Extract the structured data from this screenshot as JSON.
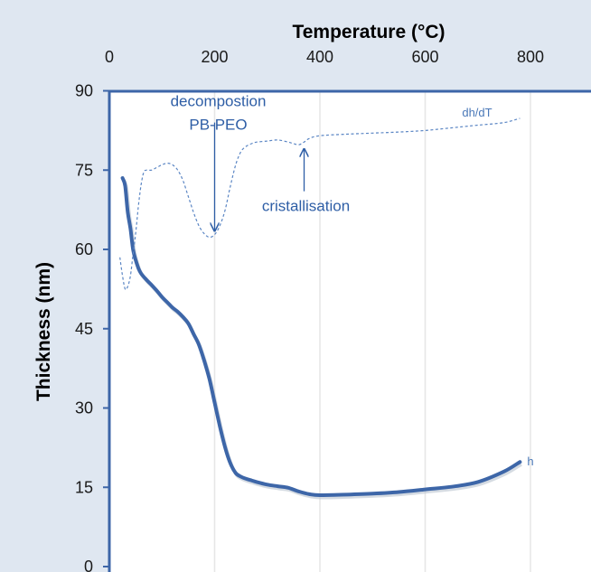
{
  "chart_data": {
    "type": "line",
    "xlabel": "Temperature (°C)",
    "ylabel": "Thickness (nm)",
    "xlim": [
      0,
      900
    ],
    "ylim": [
      0,
      90
    ],
    "xticks": [
      0,
      200,
      400,
      600,
      800
    ],
    "yticks": [
      0,
      15,
      30,
      45,
      60,
      75,
      90
    ],
    "x_axis_position": "top",
    "grid": "vertical",
    "series": [
      {
        "name": "h",
        "style": "solid-thick",
        "color": "#3d66a8",
        "x": [
          25,
          30,
          35,
          40,
          45,
          50,
          55,
          60,
          70,
          80,
          90,
          100,
          110,
          120,
          130,
          140,
          150,
          160,
          170,
          180,
          190,
          200,
          210,
          220,
          230,
          240,
          250,
          260,
          270,
          280,
          300,
          320,
          340,
          360,
          380,
          400,
          450,
          500,
          550,
          600,
          650,
          700,
          750,
          780
        ],
        "y": [
          73.5,
          72,
          67,
          64,
          60,
          58,
          56.5,
          55.5,
          54.3,
          53.3,
          52.2,
          51,
          50,
          49,
          48.2,
          47.2,
          46,
          44,
          42,
          39,
          35.5,
          31,
          26.5,
          22.5,
          19.5,
          17.7,
          17.0,
          16.6,
          16.3,
          16.0,
          15.5,
          15.2,
          14.9,
          14.2,
          13.7,
          13.5,
          13.6,
          13.8,
          14.1,
          14.6,
          15.1,
          16.0,
          18.0,
          19.8
        ]
      },
      {
        "name": "dh/dT",
        "style": "dashed",
        "color": "#5b86c4",
        "x": [
          20,
          25,
          30,
          35,
          40,
          45,
          50,
          55,
          60,
          65,
          70,
          80,
          90,
          100,
          110,
          120,
          130,
          140,
          150,
          160,
          170,
          180,
          190,
          200,
          210,
          220,
          230,
          240,
          250,
          260,
          270,
          280,
          300,
          320,
          340,
          350,
          360,
          370,
          380,
          400,
          450,
          500,
          550,
          600,
          650,
          700,
          750,
          780
        ],
        "y": [
          58.5,
          55,
          52.5,
          53,
          55,
          59,
          63,
          68,
          72,
          74.5,
          75,
          75,
          75.5,
          76,
          76.3,
          76,
          75,
          73,
          70,
          67,
          64.5,
          63,
          62.3,
          62.8,
          64.5,
          67.5,
          72,
          76,
          78.5,
          79.5,
          80,
          80.3,
          80.5,
          80.7,
          80.3,
          80,
          79.8,
          80.3,
          81,
          81.5,
          81.8,
          82,
          82.2,
          82.5,
          83,
          83.5,
          84,
          84.8
        ]
      }
    ],
    "annotations": [
      {
        "id": "decomposition",
        "text_lines": [
          "decompostion",
          "PB-PEO"
        ],
        "arrow": "down",
        "arrow_x": 200,
        "arrow_from_y": 84,
        "arrow_to_y": 63.5
      },
      {
        "id": "cristallisation",
        "text_lines": [
          "cristallisation"
        ],
        "arrow": "up",
        "arrow_x": 370,
        "arrow_from_y": 71,
        "arrow_to_y": 79
      }
    ]
  }
}
